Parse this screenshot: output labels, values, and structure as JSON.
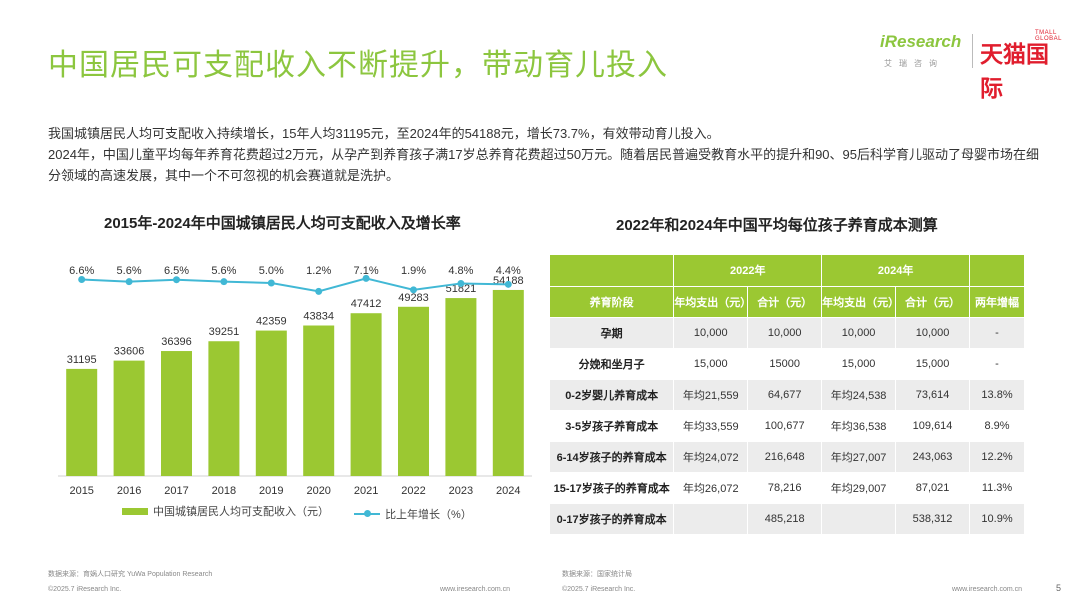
{
  "header": {
    "title": "中国居民可支配收入不断提升，带动育儿投入",
    "logo_iresearch": "iResearch",
    "logo_iresearch_sub": "艾瑞咨询",
    "logo_tmall": "天猫国际",
    "logo_tmall_sub": "TMALL GLOBAL"
  },
  "intro": {
    "line1": "我国城镇居民人均可支配收入持续增长，15年人均31195元，至2024年的54188元，增长73.7%，有效带动育儿投入。",
    "line2": "2024年，中国儿童平均每年养育花费超过2万元，从孕产到养育孩子满17岁总养育花费超过50万元。随着居民普遍受教育水平的提升和90、95后科学育儿驱动了母婴市场在细分领域的高速发展，其中一个不可忽视的机会赛道就是洗护。"
  },
  "chart_data": {
    "type": "bar",
    "title": "2015年-2024年中国城镇居民人均可支配收入及增长率",
    "categories": [
      "2015",
      "2016",
      "2017",
      "2018",
      "2019",
      "2020",
      "2021",
      "2022",
      "2023",
      "2024"
    ],
    "series": [
      {
        "name": "中国城镇居民人均可支配收入（元）",
        "type": "bar",
        "values": [
          31195,
          33606,
          36396,
          39251,
          42359,
          43834,
          47412,
          49283,
          51821,
          54188
        ]
      },
      {
        "name": "比上年增长（%）",
        "type": "line",
        "values": [
          6.6,
          5.6,
          6.5,
          5.6,
          5.0,
          1.2,
          7.1,
          1.9,
          4.8,
          4.4
        ],
        "labels": [
          "6.6%",
          "5.6%",
          "6.5%",
          "5.6%",
          "5.0%",
          "1.2%",
          "7.1%",
          "1.9%",
          "4.8%",
          "4.4%"
        ]
      }
    ],
    "bar_color": "#9bc832",
    "line_color": "#41b8d5"
  },
  "table": {
    "title": "2022年和2024年中国平均每位孩子养育成本测算",
    "group_headers": [
      "2022年",
      "2024年"
    ],
    "columns": [
      "养育阶段",
      "年均支出（元）",
      "合计（元）",
      "年均支出（元）",
      "合计（元）",
      "两年增幅"
    ],
    "rows": [
      [
        "孕期",
        "10,000",
        "10,000",
        "10,000",
        "10,000",
        "-"
      ],
      [
        "分娩和坐月子",
        "15,000",
        "15000",
        "15,000",
        "15,000",
        "-"
      ],
      [
        "0-2岁婴儿养育成本",
        "年均21,559",
        "64,677",
        "年均24,538",
        "73,614",
        "13.8%"
      ],
      [
        "3-5岁孩子养育成本",
        "年均33,559",
        "100,677",
        "年均36,538",
        "109,614",
        "8.9%"
      ],
      [
        "6-14岁孩子的养育成本",
        "年均24,072",
        "216,648",
        "年均27,007",
        "243,063",
        "12.2%"
      ],
      [
        "15-17岁孩子的养育成本",
        "年均26,072",
        "78,216",
        "年均29,007",
        "87,021",
        "11.3%"
      ],
      [
        "0-17岁孩子的养育成本",
        "",
        "485,218",
        "",
        "538,312",
        "10.9%"
      ]
    ],
    "header_color": "#9bc832"
  },
  "footer": {
    "source_left": "数据来源：育娲人口研究 YuWa Population Research",
    "source_right": "数据来源：国家统计局",
    "copyright_left": "©2025.7 iResearch Inc.",
    "url_left": "www.iresearch.com.cn",
    "copyright_right": "©2025.7 iResearch Inc.",
    "url_right": "www.iresearch.com.cn",
    "page": "5"
  }
}
